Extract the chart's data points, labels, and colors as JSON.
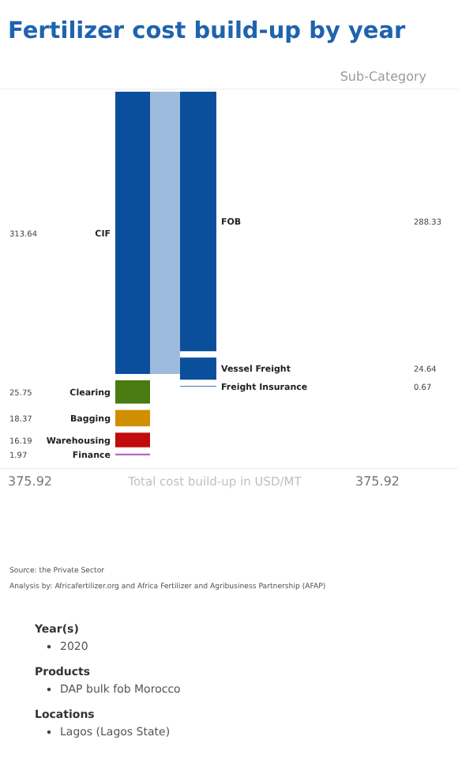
{
  "chart_data": {
    "type": "other",
    "title": "Fertilizer cost build-up by year",
    "subtitle": "Sub-Category",
    "xlabel": "Total cost build-up in USD/MT",
    "categories": [
      "CIF",
      "Clearing",
      "Bagging",
      "Warehousing",
      "Finance",
      "FOB",
      "Vessel Freight",
      "Freight Insurance"
    ],
    "series": [
      {
        "values": [
          313.64,
          25.75,
          18.37,
          16.19,
          1.97,
          null,
          null,
          null
        ],
        "colors": [
          "#0b4f9c",
          "#4a7b12",
          "#d18f00",
          "#c00c0c",
          "#b36bc0",
          null,
          null,
          null
        ]
      },
      {
        "values": [
          null,
          null,
          null,
          null,
          null,
          288.33,
          24.64,
          0.67
        ],
        "colors": [
          null,
          null,
          null,
          null,
          null,
          "#0b4f9c",
          "#0b4f9c",
          "#0b4f9c"
        ]
      }
    ],
    "data_labels": true,
    "totals": [
      "375.92",
      "375.92"
    ],
    "annotations": [
      "Source: the Private Sector",
      "Analysis by: Africafertilizer.org and Africa Fertilizer and Agribusiness Partnership (AFAP)",
      "Year(s)",
      "2020",
      "Products",
      "DAP bulk fob Morocco",
      "Locations",
      "Lagos (Lagos State)"
    ]
  }
}
